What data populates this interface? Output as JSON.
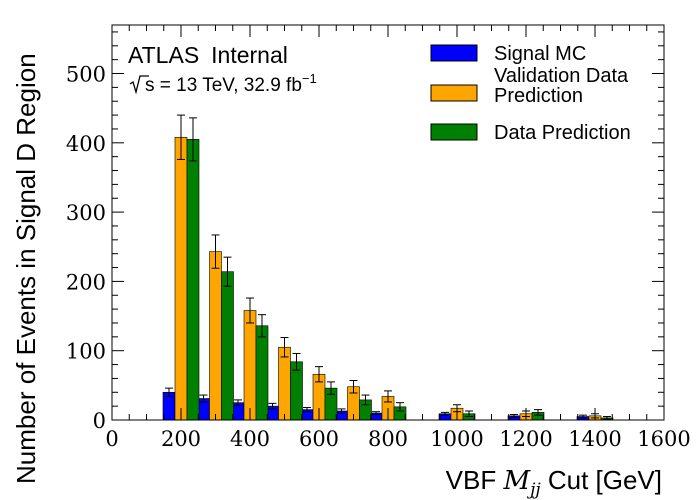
{
  "chart_data": {
    "type": "bar",
    "experiment": "ATLAS",
    "status": "Internal",
    "energy_label": "s = 13 TeV, 32.9 fb",
    "energy_superscript": "−1",
    "xlabel_prefix": "VBF ",
    "xlabel_math": "M",
    "xlabel_sub": "jj",
    "xlabel_suffix": " Cut [GeV]",
    "ylabel": "Number of Events in Signal D Region",
    "xlim": [
      0,
      1600
    ],
    "ylim": [
      0,
      570
    ],
    "x_ticks": [
      0,
      200,
      400,
      600,
      800,
      1000,
      1200,
      1400,
      1600
    ],
    "y_ticks": [
      0,
      100,
      200,
      300,
      400,
      500
    ],
    "grid": false,
    "legend_position": "top-right",
    "x": [
      200,
      300,
      400,
      500,
      600,
      700,
      800,
      1000,
      1200,
      1400
    ],
    "series": [
      {
        "name": "Signal MC",
        "color": "#0000ff",
        "values": [
          40,
          31,
          25,
          20,
          15,
          13,
          10,
          9,
          6,
          5
        ],
        "errors": [
          6,
          5,
          4,
          4,
          3,
          3,
          2,
          2,
          2,
          2
        ]
      },
      {
        "name": "Validation Data Prediction",
        "color": "#ffa500",
        "values": [
          408,
          243,
          158,
          105,
          66,
          48,
          34,
          17,
          9,
          6
        ],
        "errors": [
          32,
          24,
          18,
          14,
          11,
          9,
          8,
          5,
          4,
          3
        ]
      },
      {
        "name": "Data Prediction",
        "color": "#008000",
        "values": [
          405,
          214,
          136,
          84,
          46,
          29,
          19,
          9,
          11,
          3
        ],
        "errors": [
          31,
          21,
          16,
          12,
          9,
          7,
          6,
          4,
          4,
          2
        ]
      }
    ],
    "legend_labels": [
      [
        "Signal MC"
      ],
      [
        "Validation Data",
        "Prediction"
      ],
      [
        "Data Prediction"
      ]
    ]
  }
}
